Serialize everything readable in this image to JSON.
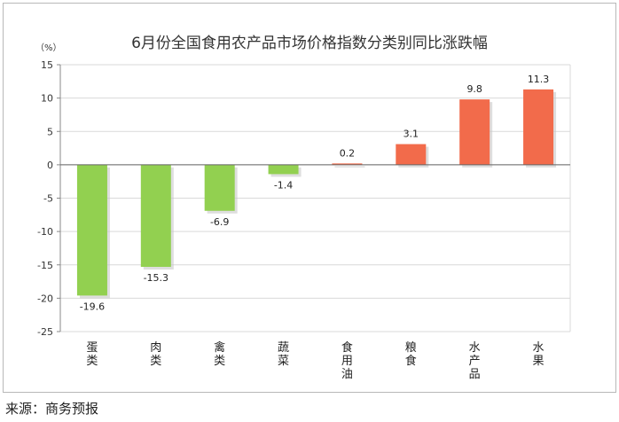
{
  "chart_data": {
    "type": "bar",
    "title": "6月份全国食用农产品市场价格指数分类别同比涨跌幅",
    "unit_label": "（%）",
    "categories": [
      "蛋类",
      "肉类",
      "禽类",
      "蔬菜",
      "食用油",
      "粮食",
      "水产品",
      "水果"
    ],
    "values": [
      -19.6,
      -15.3,
      -6.9,
      -1.4,
      0.2,
      3.1,
      9.8,
      11.3
    ],
    "value_labels": [
      "-19.6",
      "-15.3",
      "-6.9",
      "-1.4",
      "0.2",
      "3.1",
      "9.8",
      "11.3"
    ],
    "yticks": [
      "15",
      "10",
      "5",
      "0",
      "-5",
      "-10",
      "-15",
      "-20",
      "-25"
    ],
    "ylim": [
      -25,
      15
    ],
    "colors": {
      "negative": "#92d050",
      "positive": "#f26b4b",
      "grid": "#d9d9d9"
    },
    "grid": true
  },
  "footer": {
    "source": "来源：商务预报"
  }
}
